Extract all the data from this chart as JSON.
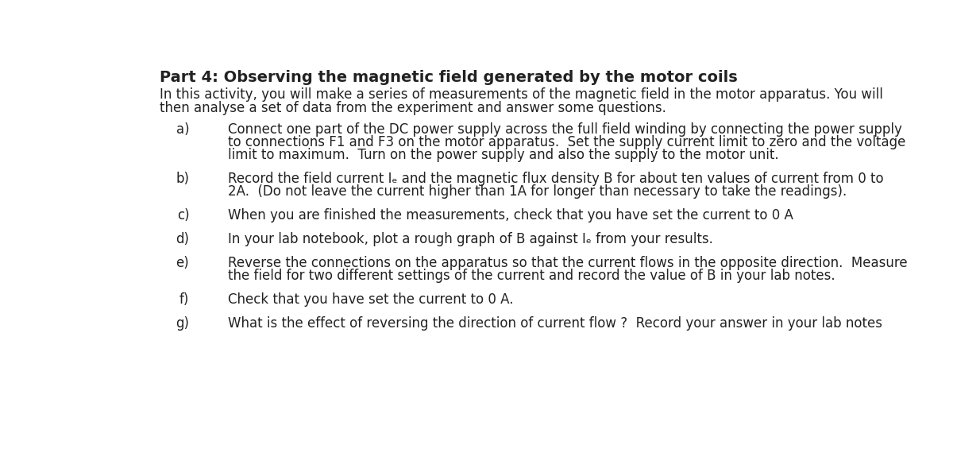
{
  "title": "Part 4: Observing the magnetic field generated by the motor coils",
  "intro_line1": "In this activity, you will make a series of measurements of the magnetic field in the motor apparatus. You will",
  "intro_line2": "then analyse a set of data from the experiment and answer some questions.",
  "items": [
    {
      "label": "a)",
      "lines": [
        "Connect one part of the DC power supply across the full field winding by connecting the power supply",
        "to connections F1 and F3 on the motor apparatus.  Set the supply current limit to zero and the voltage",
        "limit to maximum.  Turn on the power supply and also the supply to the motor unit."
      ]
    },
    {
      "label": "b)",
      "lines": [
        "Record the field current Iₑ and the magnetic flux density B for about ten values of current from 0 to",
        "2A.  (Do not leave the current higher than 1A for longer than necessary to take the readings)."
      ]
    },
    {
      "label": "c)",
      "lines": [
        "When you are finished the measurements, check that you have set the current to 0 A"
      ]
    },
    {
      "label": "d)",
      "lines": [
        "In your lab notebook, plot a rough graph of B against Iₑ from your results."
      ]
    },
    {
      "label": "e)",
      "lines": [
        "Reverse the connections on the apparatus so that the current flows in the opposite direction.  Measure",
        "the field for two different settings of the current and record the value of B in your lab notes."
      ]
    },
    {
      "label": "f)",
      "lines": [
        "Check that you have set the current to 0 A."
      ]
    },
    {
      "label": "g)",
      "lines": [
        "What is the effect of reversing the direction of current flow ?  Record your answer in your lab notes"
      ]
    }
  ],
  "background_color": "#ffffff",
  "text_color": "#222222",
  "title_fontsize": 14,
  "body_fontsize": 12,
  "fig_width": 12.0,
  "fig_height": 5.99
}
